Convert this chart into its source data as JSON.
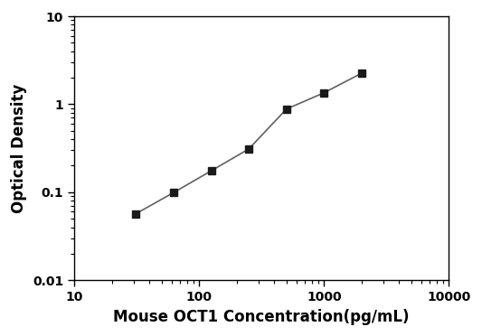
{
  "x": [
    31.25,
    62.5,
    125,
    250,
    500,
    1000,
    2000
  ],
  "y": [
    0.057,
    0.099,
    0.175,
    0.31,
    0.88,
    1.35,
    2.25
  ],
  "xlabel": "Mouse OCT1 Concentration(pg/mL)",
  "ylabel": "Optical Density",
  "xlim": [
    10,
    10000
  ],
  "ylim": [
    0.01,
    10
  ],
  "line_color": "#606060",
  "marker_color": "#1a1a1a",
  "marker": "s",
  "marker_size": 6,
  "line_width": 1.2,
  "background_color": "#ffffff",
  "xticks": [
    10,
    100,
    1000,
    10000
  ],
  "yticks": [
    0.01,
    0.1,
    1,
    10
  ],
  "xtick_labels": [
    "10",
    "100",
    "1000",
    "10000"
  ],
  "ytick_labels": [
    "0.01",
    "0.1",
    "1",
    "10"
  ],
  "xlabel_fontsize": 12,
  "ylabel_fontsize": 12,
  "tick_labelsize": 10
}
